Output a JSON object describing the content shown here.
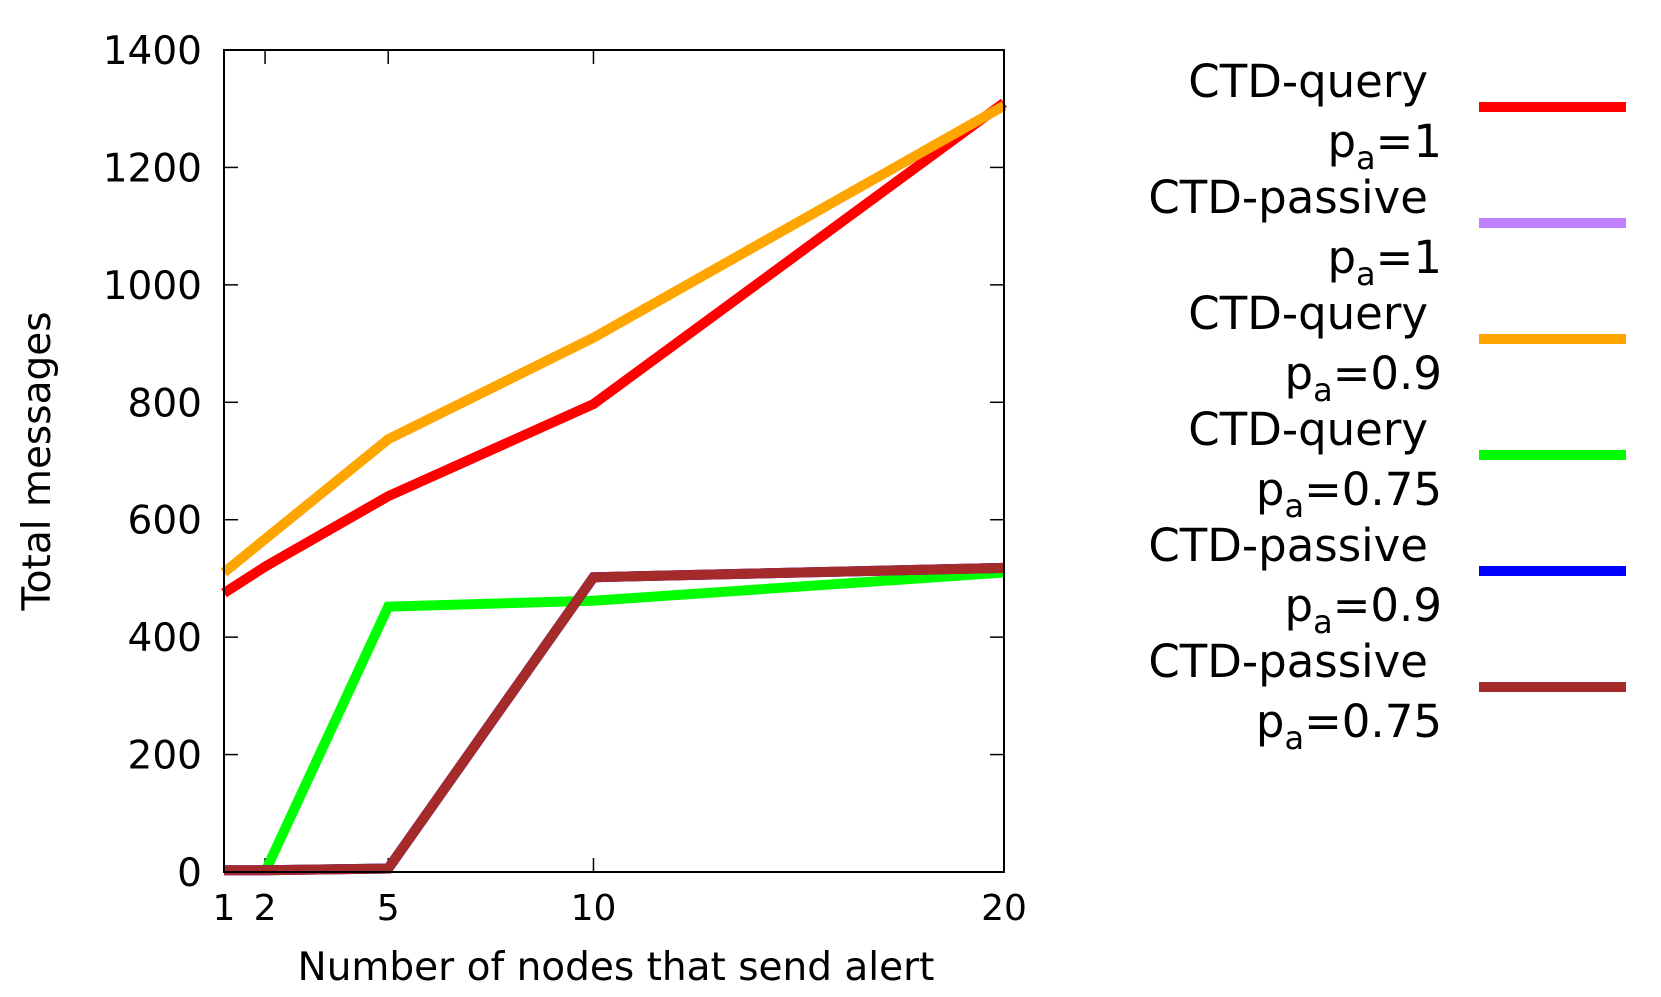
{
  "chart_data": {
    "type": "line",
    "xlabel": "Number of nodes that send alert",
    "ylabel": "Total messages",
    "x": [
      1,
      2,
      5,
      10,
      20
    ],
    "xlim": [
      1,
      20
    ],
    "xticks": [
      1,
      2,
      5,
      10,
      20
    ],
    "ylim": [
      0,
      1400
    ],
    "yticks": [
      0,
      200,
      400,
      600,
      800,
      1000,
      1200,
      1400
    ],
    "grid": false,
    "legend": "right",
    "series": [
      {
        "name": "CTD-query",
        "condition": {
          "symbol": "p",
          "subscript": "a",
          "value": "=1"
        },
        "color": "#ff0000",
        "values": [
          475,
          520,
          640,
          797,
          1310
        ]
      },
      {
        "name": "CTD-passive",
        "condition": {
          "symbol": "p",
          "subscript": "a",
          "value": "=1"
        },
        "color": "#bf80ff",
        "values": [
          3,
          3,
          6,
          502,
          518
        ]
      },
      {
        "name": "CTD-query",
        "condition": {
          "symbol": "p",
          "subscript": "a",
          "value": "=0.9"
        },
        "color": "#ffa500",
        "values": [
          510,
          567,
          737,
          910,
          1305
        ]
      },
      {
        "name": "CTD-query",
        "condition": {
          "symbol": "p",
          "subscript": "a",
          "value": "=0.75"
        },
        "color": "#00ff00",
        "values": [
          null,
          0,
          452,
          462,
          510
        ]
      },
      {
        "name": "CTD-passive",
        "condition": {
          "symbol": "p",
          "subscript": "a",
          "value": "=0.9"
        },
        "color": "#0000ff",
        "values": [
          3,
          3,
          6,
          502,
          518
        ]
      },
      {
        "name": "CTD-passive",
        "condition": {
          "symbol": "p",
          "subscript": "a",
          "value": "=0.75"
        },
        "color": "#a52a2a",
        "values": [
          3,
          3,
          6,
          502,
          518
        ]
      }
    ]
  }
}
